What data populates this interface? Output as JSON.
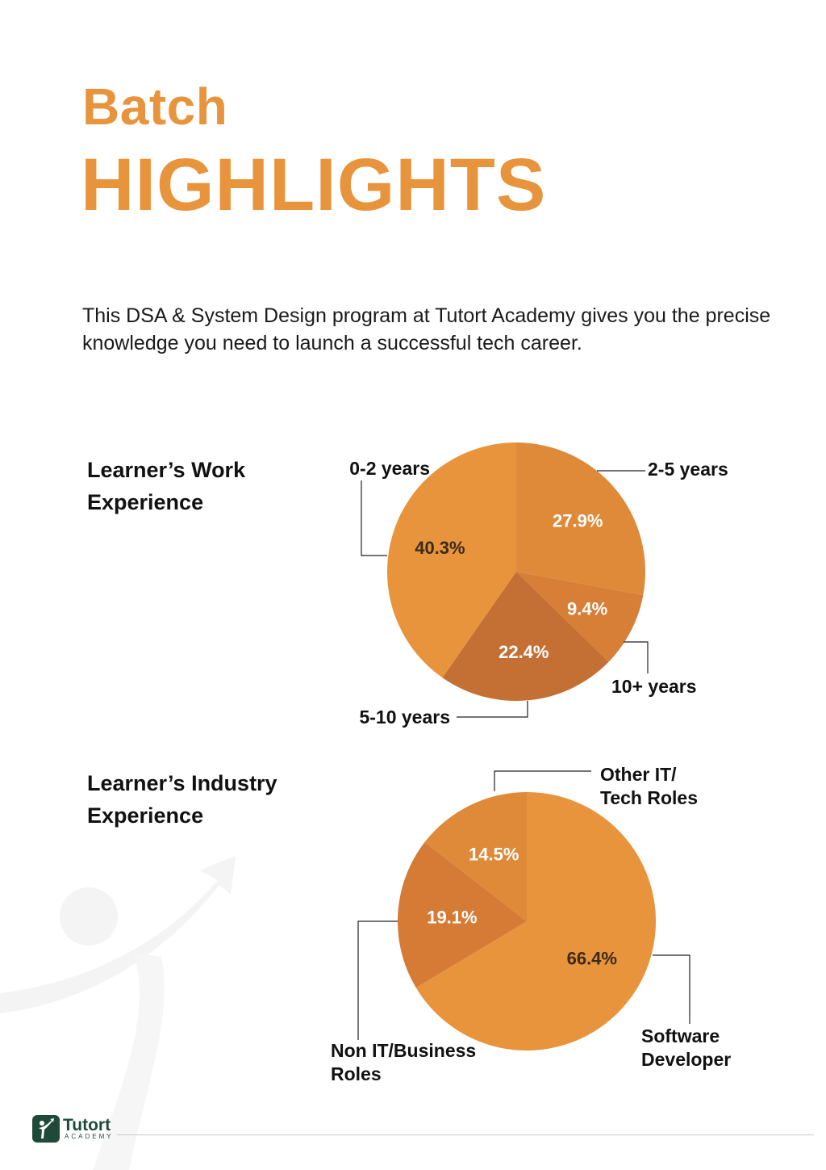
{
  "heading": {
    "line1": "Batch",
    "line2": "HIGHLIGHTS"
  },
  "intro": "This DSA & System Design program at Tutort Academy gives you the precise knowledge you need to launch a successful tech career.",
  "colors": {
    "accent": "#E8943C",
    "brand_green": "#1F4A3A"
  },
  "chart_data": [
    {
      "type": "pie",
      "title": "Learner’s Work Experience",
      "slices": [
        {
          "label": "2-5 years",
          "value": 27.9,
          "value_label": "27.9%",
          "color": "#DE8A39",
          "label_color": "#ffffff"
        },
        {
          "label": "10+ years",
          "value": 9.4,
          "value_label": "9.4%",
          "color": "#D77E37",
          "label_color": "#ffffff"
        },
        {
          "label": "5-10 years",
          "value": 22.4,
          "value_label": "22.4%",
          "color": "#C47034",
          "label_color": "#ffffff"
        },
        {
          "label": "0-2 years",
          "value": 40.3,
          "value_label": "40.3%",
          "color": "#E8943C",
          "label_color": "#3a2a1a"
        }
      ]
    },
    {
      "type": "pie",
      "title": "Learner’s Industry Experience",
      "slices": [
        {
          "label": "Software Developer",
          "label_lines": [
            "Software",
            "Developer"
          ],
          "value": 66.4,
          "value_label": "66.4%",
          "color": "#E8943C",
          "label_color": "#3a2a1a"
        },
        {
          "label": "Non IT/Business Roles",
          "label_lines": [
            "Non IT/Business",
            "Roles"
          ],
          "value": 19.1,
          "value_label": "19.1%",
          "color": "#D57B36",
          "label_color": "#ffffff"
        },
        {
          "label": "Other IT/ Tech Roles",
          "label_lines": [
            "Other IT/",
            "Tech Roles"
          ],
          "value": 14.5,
          "value_label": "14.5%",
          "color": "#DE8A39",
          "label_color": "#ffffff"
        }
      ]
    }
  ],
  "footer": {
    "brand": "Tutort",
    "brand_sub": "ACADEMY"
  }
}
